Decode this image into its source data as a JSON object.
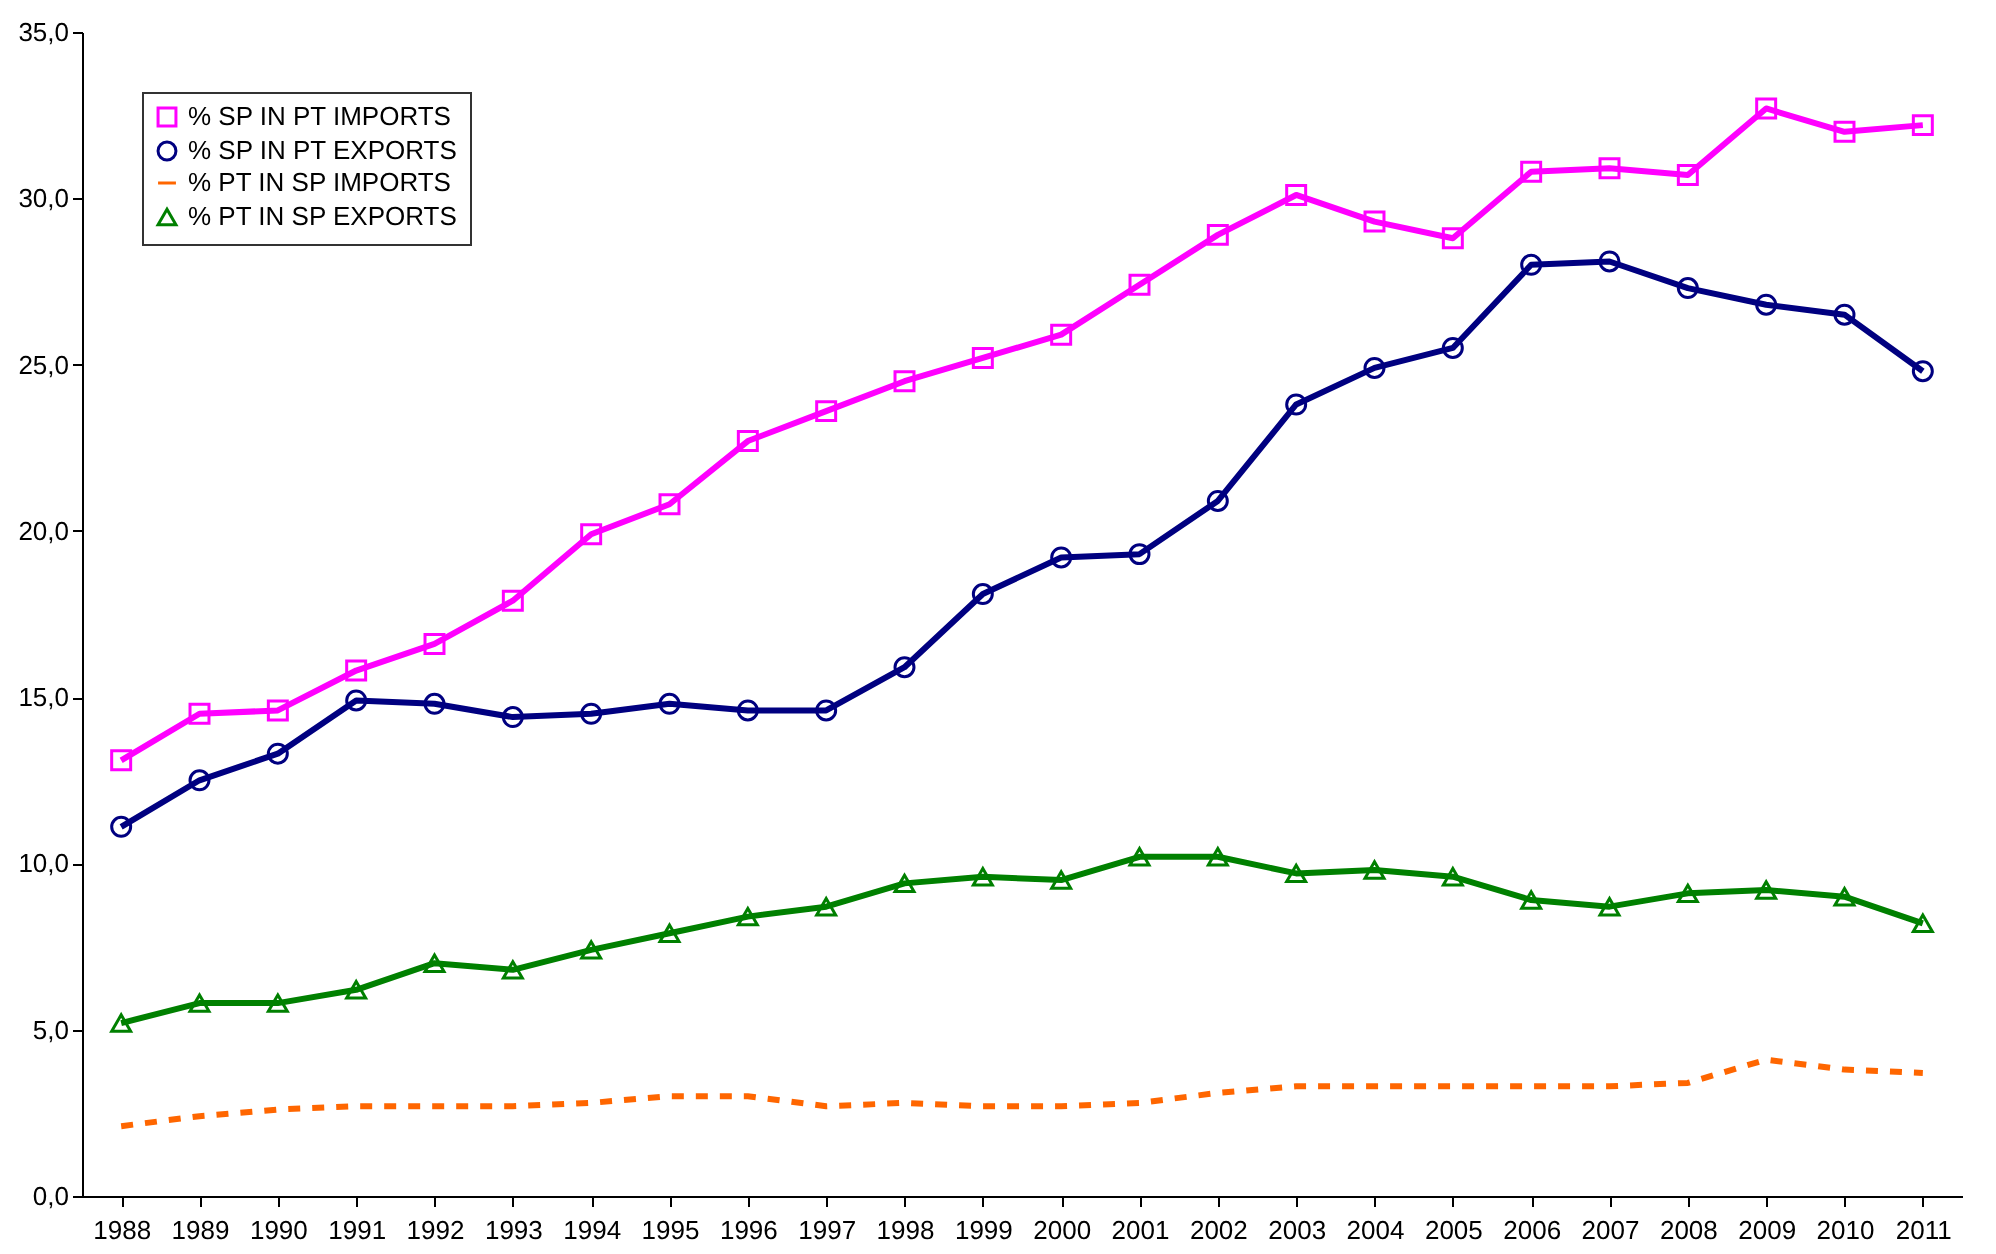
{
  "chart_data": {
    "type": "line",
    "categories": [
      "1988",
      "1989",
      "1990",
      "1991",
      "1992",
      "1993",
      "1994",
      "1995",
      "1996",
      "1997",
      "1998",
      "1999",
      "2000",
      "2001",
      "2002",
      "2003",
      "2004",
      "2005",
      "2006",
      "2007",
      "2008",
      "2009",
      "2010",
      "2011"
    ],
    "series": [
      {
        "name": "% SP IN PT IMPORTS",
        "color": "#ff00ff",
        "marker": "square",
        "line_style": "solid",
        "values": [
          13.1,
          14.5,
          14.6,
          15.8,
          16.6,
          17.9,
          19.9,
          20.8,
          22.7,
          23.6,
          24.5,
          25.2,
          25.9,
          27.4,
          28.9,
          30.1,
          29.3,
          28.8,
          30.8,
          30.9,
          30.7,
          32.7,
          32.0,
          32.2
        ]
      },
      {
        "name": "% SP IN PT EXPORTS",
        "color": "#000080",
        "marker": "circle",
        "line_style": "solid",
        "values": [
          11.1,
          12.5,
          13.3,
          14.9,
          14.8,
          14.4,
          14.5,
          14.8,
          14.6,
          14.6,
          15.9,
          18.1,
          19.2,
          19.3,
          20.9,
          23.8,
          24.9,
          25.5,
          28.0,
          28.1,
          27.3,
          26.8,
          26.5,
          24.8
        ]
      },
      {
        "name": "% PT IN SP IMPORTS",
        "color": "#ff6600",
        "marker": "none",
        "line_style": "dashed",
        "values": [
          2.1,
          2.4,
          2.6,
          2.7,
          2.7,
          2.7,
          2.8,
          3.0,
          3.0,
          2.7,
          2.8,
          2.7,
          2.7,
          2.8,
          3.1,
          3.3,
          3.3,
          3.3,
          3.3,
          3.3,
          3.4,
          4.1,
          3.8,
          3.7
        ]
      },
      {
        "name": "% PT IN SP EXPORTS",
        "color": "#008000",
        "marker": "triangle",
        "line_style": "solid",
        "values": [
          5.2,
          5.8,
          5.8,
          6.2,
          7.0,
          6.8,
          7.4,
          7.9,
          8.4,
          8.7,
          9.4,
          9.6,
          9.5,
          10.2,
          10.2,
          9.7,
          9.8,
          9.6,
          8.9,
          8.7,
          9.1,
          9.2,
          9.0,
          8.2
        ]
      }
    ],
    "ylim": [
      0,
      35
    ],
    "yticks": [
      {
        "value": 0,
        "label": "0,0"
      },
      {
        "value": 5,
        "label": "5,0"
      },
      {
        "value": 10,
        "label": "10,0"
      },
      {
        "value": 15,
        "label": "15,0"
      },
      {
        "value": 20,
        "label": "20,0"
      },
      {
        "value": 25,
        "label": "25,0"
      },
      {
        "value": 30,
        "label": "30,0"
      },
      {
        "value": 35,
        "label": "35,0"
      }
    ],
    "legend": "top left"
  }
}
